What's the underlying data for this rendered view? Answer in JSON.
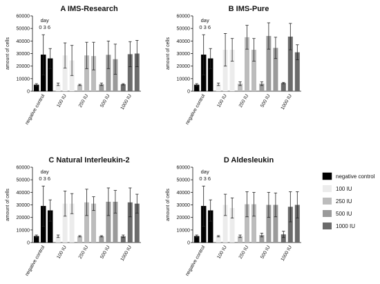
{
  "figure": {
    "legend": [
      {
        "label": "negative control",
        "color": "#000000"
      },
      {
        "label": "100 IU",
        "color": "#ececec"
      },
      {
        "label": "250 IU",
        "color": "#bcbcbc"
      },
      {
        "label": "500 IU",
        "color": "#9a9a9a"
      },
      {
        "label": "1000 IU",
        "color": "#6b6b6b"
      }
    ],
    "day_label": "day",
    "day_values": "0 3 6"
  },
  "chart_data": [
    {
      "type": "bar",
      "panel_letter": "A",
      "title": "IMS-Research",
      "ylabel": "amount of cells",
      "ylim": [
        0,
        60000
      ],
      "yticks": [
        0,
        10000,
        20000,
        30000,
        40000,
        50000,
        60000
      ],
      "categories": [
        "negative control",
        "100 IU",
        "250 IU",
        "500 IU",
        "1000 IU"
      ],
      "series": [
        {
          "name": "0",
          "values": [
            5000,
            5500,
            5000,
            5500,
            5500
          ],
          "errors": [
            1000,
            1000,
            500,
            1000,
            500
          ]
        },
        {
          "name": "3",
          "values": [
            29000,
            28500,
            28500,
            29000,
            29500
          ],
          "errors": [
            16000,
            10000,
            10500,
            11000,
            10000
          ]
        },
        {
          "name": "6",
          "values": [
            26000,
            24500,
            28000,
            25500,
            30000
          ],
          "errors": [
            8000,
            12000,
            11000,
            12000,
            10500
          ]
        }
      ]
    },
    {
      "type": "bar",
      "panel_letter": "B",
      "title": "IMS-Pure",
      "ylabel": "amount of cells",
      "ylim": [
        0,
        60000
      ],
      "yticks": [
        0,
        10000,
        20000,
        30000,
        40000,
        50000,
        60000
      ],
      "categories": [
        "negative control",
        "100 IU",
        "250 IU",
        "500 IU",
        "1000 IU"
      ],
      "series": [
        {
          "name": "0",
          "values": [
            5000,
            5500,
            6000,
            6000,
            6500
          ],
          "errors": [
            1000,
            1000,
            1500,
            1500,
            500
          ]
        },
        {
          "name": "3",
          "values": [
            29000,
            33000,
            43000,
            44000,
            43500
          ],
          "errors": [
            16000,
            13000,
            9500,
            10500,
            10500
          ]
        },
        {
          "name": "6",
          "values": [
            26000,
            33000,
            33000,
            34500,
            31000
          ],
          "errors": [
            8000,
            9000,
            9000,
            8500,
            6000
          ]
        }
      ]
    },
    {
      "type": "bar",
      "panel_letter": "C",
      "title": "Natural Interleukin-2",
      "ylabel": "amount of cells",
      "ylim": [
        0,
        60000
      ],
      "yticks": [
        0,
        10000,
        20000,
        30000,
        40000,
        50000,
        60000
      ],
      "categories": [
        "negative control",
        "100 IU",
        "250 IU",
        "500 IU",
        "1000 IU"
      ],
      "series": [
        {
          "name": "0",
          "values": [
            5000,
            5000,
            5000,
            5000,
            5000
          ],
          "errors": [
            1000,
            1000,
            500,
            500,
            1000
          ]
        },
        {
          "name": "3",
          "values": [
            29000,
            31000,
            32000,
            32500,
            32000
          ],
          "errors": [
            16000,
            10000,
            10500,
            11000,
            11500
          ]
        },
        {
          "name": "6",
          "values": [
            25500,
            31000,
            31000,
            32500,
            31000
          ],
          "errors": [
            8500,
            8000,
            5500,
            9000,
            7500
          ]
        }
      ]
    },
    {
      "type": "bar",
      "panel_letter": "D",
      "title": "Aldesleukin",
      "ylabel": "amount of cells",
      "ylim": [
        0,
        60000
      ],
      "yticks": [
        0,
        10000,
        20000,
        30000,
        40000,
        50000,
        60000
      ],
      "categories": [
        "negative control",
        "100 IU",
        "250 IU",
        "500 IU",
        "1000 IU"
      ],
      "series": [
        {
          "name": "0",
          "values": [
            5000,
            5000,
            5000,
            6000,
            6500
          ],
          "errors": [
            1000,
            500,
            1000,
            1500,
            2500
          ]
        },
        {
          "name": "3",
          "values": [
            29000,
            30000,
            30500,
            30000,
            28500
          ],
          "errors": [
            16000,
            8500,
            10000,
            10000,
            12000
          ]
        },
        {
          "name": "6",
          "values": [
            25500,
            27500,
            30500,
            30000,
            30000
          ],
          "errors": [
            8500,
            8000,
            9500,
            9500,
            10500
          ]
        }
      ]
    }
  ]
}
